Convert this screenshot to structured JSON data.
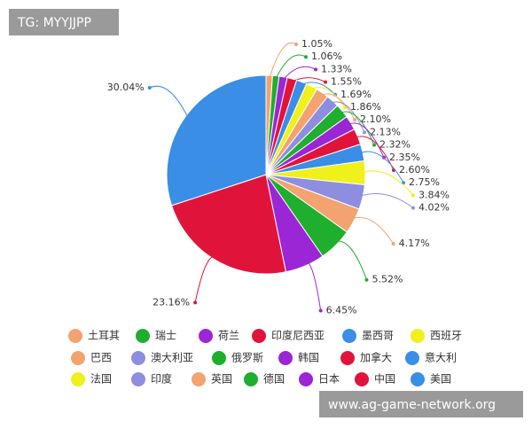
{
  "chart_data": {
    "type": "pie",
    "categories": [
      "土耳其",
      "瑞士",
      "荷兰",
      "印度尼西亚",
      "墨西哥",
      "西班牙",
      "巴西",
      "澳大利亚",
      "俄罗斯",
      "韩国",
      "加拿大",
      "意大利",
      "法国",
      "印度",
      "英国",
      "德国",
      "日本",
      "中国",
      "美国"
    ],
    "values": [
      1.05,
      1.06,
      1.33,
      1.55,
      1.69,
      1.86,
      2.1,
      2.13,
      2.32,
      2.35,
      2.6,
      2.75,
      3.84,
      4.02,
      4.17,
      5.52,
      6.45,
      23.16,
      30.04
    ],
    "value_labels": [
      "1.05%",
      "1.06%",
      "1.33%",
      "1.55%",
      "1.69%",
      "1.86%",
      "2.10%",
      "2.13%",
      "2.32%",
      "2.35%",
      "2.60%",
      "2.75%",
      "3.84%",
      "4.02%",
      "4.17%",
      "5.52%",
      "6.45%",
      "23.16%",
      "30.04%"
    ],
    "colors": [
      "#f2a36f",
      "#1fae2e",
      "#9b26d6",
      "#e0143a",
      "#3a8ee6",
      "#f0f01a",
      "#f2a36f",
      "#8e8ee0",
      "#1fae2e",
      "#9b26d6",
      "#e0143a",
      "#3a8ee6",
      "#f0f01a",
      "#8e8ee0",
      "#f2a36f",
      "#1fae2e",
      "#9b26d6",
      "#e0143a",
      "#3a8ee6"
    ],
    "legend": "bottom"
  },
  "watermarks": {
    "top_left": "TG: MYYJJPP",
    "bottom_right": "www.ag-game-network.org"
  }
}
